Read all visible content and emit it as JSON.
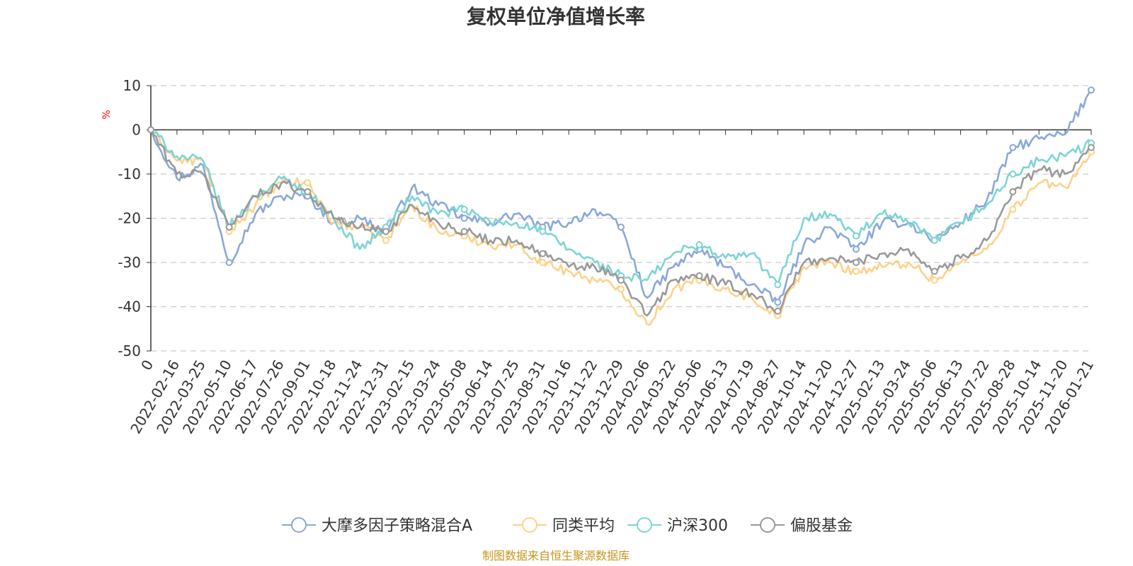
{
  "chart_data": {
    "type": "line",
    "title": "复权单位净值增长率",
    "ylabel": "%",
    "xlabel": "",
    "ylim": [
      -50,
      10
    ],
    "yticks": [
      10,
      0,
      -10,
      -20,
      -30,
      -40,
      -50
    ],
    "grid": true,
    "legend_position": "bottom-center",
    "source_note": "制图数据来自恒生聚源数据库",
    "x": [
      "0",
      "2022-02-16",
      "2022-03-25",
      "2022-05-10",
      "2022-06-17",
      "2022-07-26",
      "2022-09-01",
      "2022-10-18",
      "2022-11-24",
      "2022-12-31",
      "2023-02-15",
      "2023-03-24",
      "2023-05-08",
      "2023-06-14",
      "2023-07-25",
      "2023-08-31",
      "2023-10-16",
      "2023-11-22",
      "2023-12-29",
      "2024-02-06",
      "2024-03-22",
      "2024-05-06",
      "2024-06-13",
      "2024-07-19",
      "2024-08-27",
      "2024-10-14",
      "2024-11-20",
      "2024-12-27",
      "2025-02-13",
      "2025-03-24",
      "2025-05-06",
      "2025-06-13",
      "2025-07-22",
      "2025-08-28",
      "2025-10-14",
      "2025-11-20",
      "2026-01-21"
    ],
    "series": [
      {
        "name": "大摩多因子策略混合A",
        "color": "#8aa8d8",
        "values": [
          0,
          -11,
          -8,
          -30,
          -19,
          -15,
          -15,
          -21,
          -20,
          -23,
          -13,
          -17,
          -20,
          -21,
          -19,
          -22,
          -21,
          -18,
          -22,
          -38,
          -31,
          -27,
          -31,
          -35,
          -39,
          -26,
          -22,
          -27,
          -21,
          -21,
          -25,
          -21,
          -16,
          -4,
          -2,
          -1,
          9
        ]
      },
      {
        "name": "同类平均",
        "color": "#fdd28a",
        "values": [
          0,
          -7,
          -7,
          -23,
          -17,
          -12,
          -12,
          -21,
          -22,
          -25,
          -17,
          -23,
          -24,
          -26,
          -26,
          -30,
          -32,
          -34,
          -36,
          -44,
          -36,
          -34,
          -36,
          -38,
          -42,
          -31,
          -30,
          -32,
          -31,
          -30,
          -34,
          -30,
          -27,
          -18,
          -12,
          -13,
          -5
        ]
      },
      {
        "name": "沪深300",
        "color": "#7ed4d4",
        "values": [
          0,
          -6,
          -7,
          -22,
          -15,
          -11,
          -14,
          -20,
          -27,
          -22,
          -15,
          -19,
          -18,
          -21,
          -21,
          -23,
          -27,
          -30,
          -33,
          -34,
          -28,
          -26,
          -29,
          -28,
          -35,
          -20,
          -19,
          -24,
          -19,
          -21,
          -25,
          -21,
          -17,
          -10,
          -7,
          -6,
          -3
        ]
      },
      {
        "name": "偏股基金",
        "color": "#999999",
        "values": [
          0,
          -10,
          -10,
          -22,
          -15,
          -12,
          -14,
          -20,
          -22,
          -23,
          -17,
          -21,
          -23,
          -25,
          -25,
          -28,
          -31,
          -31,
          -34,
          -42,
          -34,
          -33,
          -35,
          -37,
          -41,
          -30,
          -29,
          -30,
          -28,
          -27,
          -32,
          -29,
          -25,
          -14,
          -9,
          -10,
          -4
        ]
      }
    ]
  }
}
